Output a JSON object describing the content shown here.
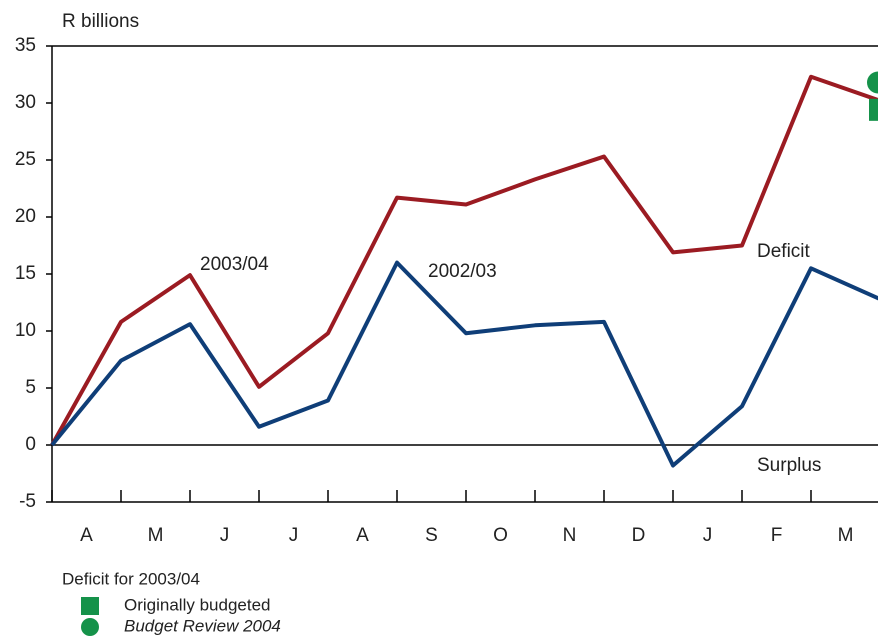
{
  "chart_data": {
    "type": "line",
    "y_label": "R billions",
    "x": [
      0,
      1,
      2,
      3,
      4,
      5,
      6,
      7,
      8,
      9,
      10,
      11,
      12
    ],
    "xlim": [
      0,
      12
    ],
    "categories": [
      "A",
      "M",
      "J",
      "J",
      "A",
      "S",
      "O",
      "N",
      "D",
      "J",
      "F",
      "M"
    ],
    "ylim": [
      -5,
      35
    ],
    "yticks": [
      -5,
      0,
      5,
      10,
      15,
      20,
      25,
      30,
      35
    ],
    "series": [
      {
        "name": "2003/04",
        "color": "#9b1b22",
        "values": [
          0,
          10.8,
          14.9,
          5.1,
          9.8,
          21.7,
          21.1,
          23.3,
          25.3,
          16.9,
          17.5,
          32.3,
          30.2
        ]
      },
      {
        "name": "2002/03",
        "color": "#0f3e78",
        "values": [
          0,
          7.4,
          10.6,
          1.6,
          3.9,
          16.0,
          9.8,
          10.5,
          10.8,
          -1.8,
          3.4,
          15.5,
          12.8
        ]
      }
    ],
    "markers": [
      {
        "name": "Originally budgeted",
        "shape": "square",
        "color": "#15924a",
        "x": 12,
        "value": 29.4
      },
      {
        "name": "Budget Review 2004",
        "shape": "circle",
        "color": "#15924a",
        "x": 12,
        "value": 31.8
      }
    ],
    "annotations": [
      "Deficit",
      "Surplus"
    ],
    "legend_title": "Deficit for 2003/04"
  }
}
